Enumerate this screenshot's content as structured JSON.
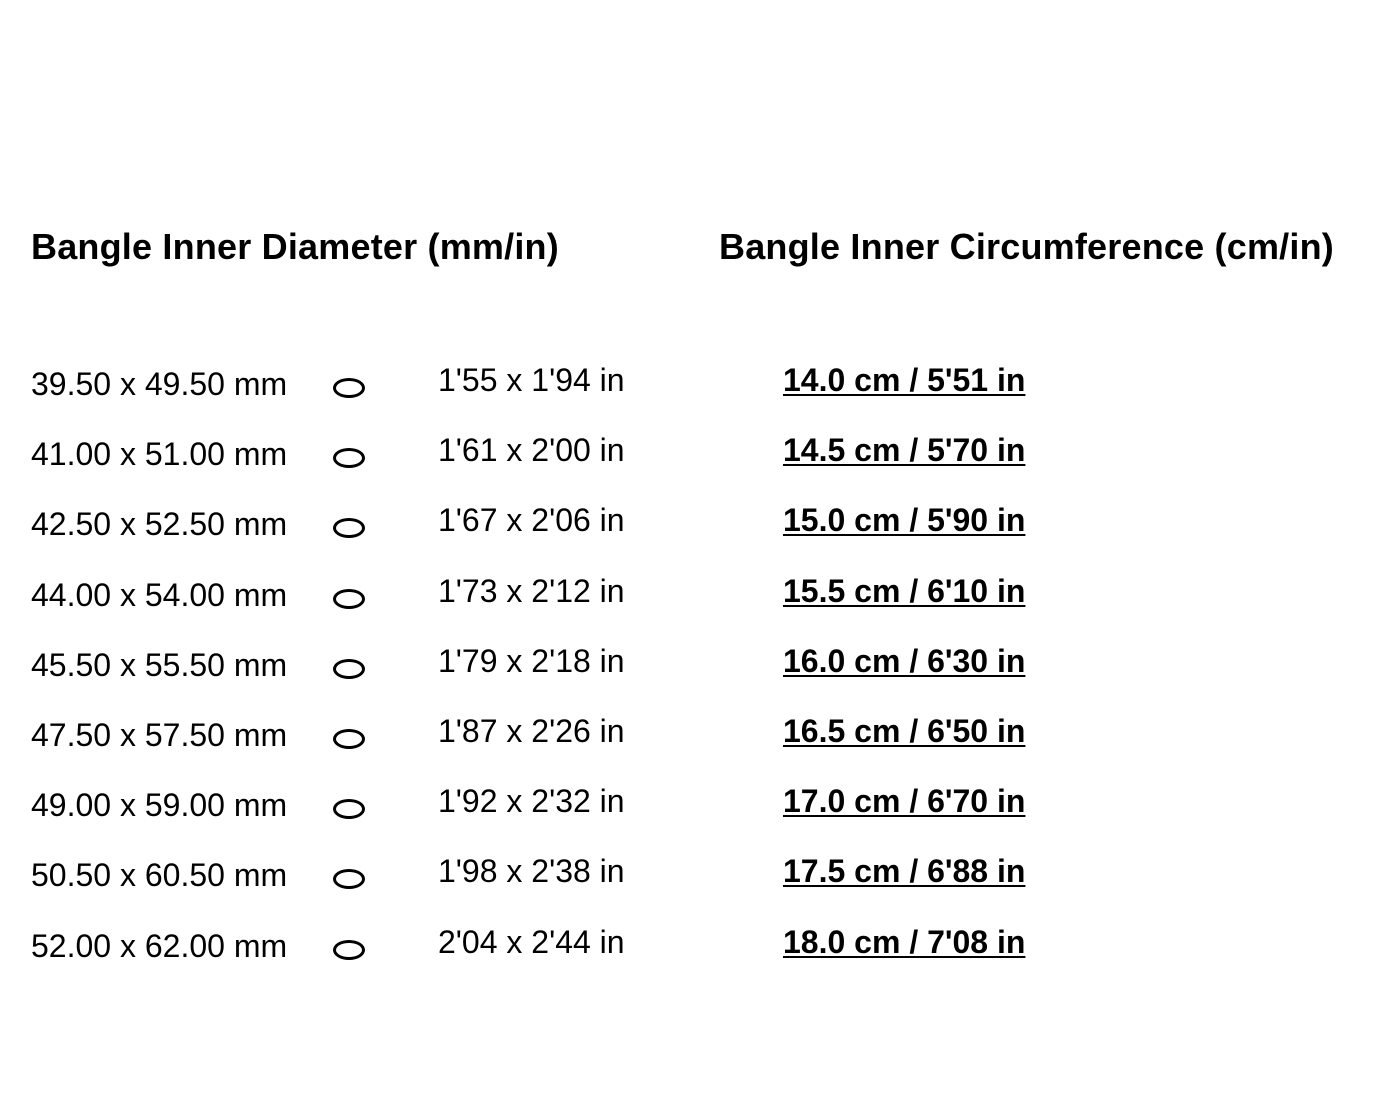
{
  "headers": {
    "diameter": "Bangle Inner Diameter (mm/in)",
    "circumference": "Bangle Inner Circumference (cm/in)"
  },
  "icon": "oval-shape-icon",
  "rows": [
    {
      "mm": "39.50 x 49.50 mm",
      "inch": "1'55 x 1'94 in",
      "circ": "14.0 cm / 5'51 in"
    },
    {
      "mm": "41.00 x 51.00 mm",
      "inch": "1'61 x 2'00 in",
      "circ": "14.5 cm / 5'70 in"
    },
    {
      "mm": "42.50 x 52.50 mm",
      "inch": "1'67 x 2'06 in",
      "circ": "15.0 cm / 5'90 in"
    },
    {
      "mm": "44.00 x 54.00 mm",
      "inch": "1'73 x 2'12 in",
      "circ": "15.5 cm / 6'10 in"
    },
    {
      "mm": "45.50 x 55.50 mm",
      "inch": "1'79 x 2'18 in",
      "circ": "16.0 cm / 6'30 in"
    },
    {
      "mm": "47.50 x 57.50 mm",
      "inch": "1'87 x 2'26 in",
      "circ": "16.5 cm / 6'50 in"
    },
    {
      "mm": "49.00 x 59.00 mm",
      "inch": "1'92 x 2'32 in",
      "circ": "17.0 cm / 6'70 in"
    },
    {
      "mm": "50.50 x 60.50 mm",
      "inch": "1'98 x 2'38 in",
      "circ": "17.5 cm / 6'88 in"
    },
    {
      "mm": "52.00 x 62.00 mm",
      "inch": "2'04 x 2'44 in",
      "circ": "18.0 cm / 7'08 in"
    }
  ]
}
